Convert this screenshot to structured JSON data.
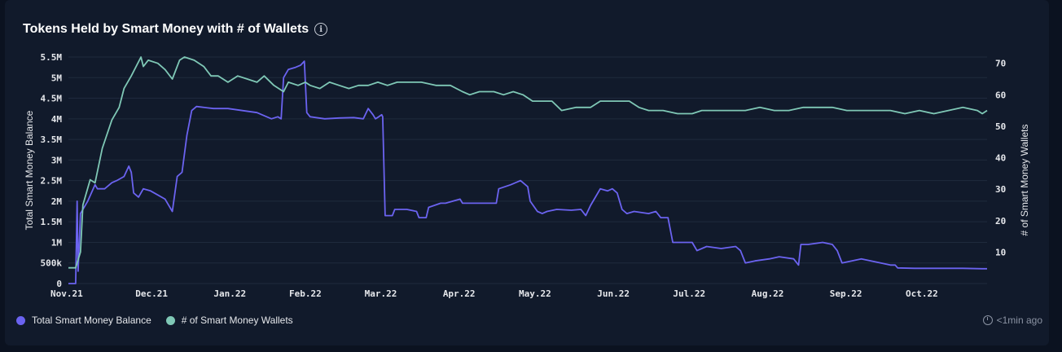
{
  "card": {
    "title": "Tokens Held by Smart Money with # of Wallets",
    "info_icon": "info-icon",
    "updated": "<1min ago",
    "updated_icon": "clock-refresh-icon"
  },
  "colors": {
    "balance": "#6b63f0",
    "wallets": "#7fc8b6",
    "grid": "#1f2a3d",
    "background": "#111a2b"
  },
  "chart_data": {
    "type": "line",
    "title": "Tokens Held by Smart Money with # of Wallets",
    "ylabel_left": "Total Smart Money Balance",
    "ylabel_right": "# of Smart Money Wallets",
    "ylim_left": [
      0,
      5500000
    ],
    "ylim_right": [
      0,
      72
    ],
    "x_ticks": [
      "Nov.21",
      "Dec.21",
      "Jan.22",
      "Feb.22",
      "Mar.22",
      "Apr.22",
      "May.22",
      "Jun.22",
      "Jul.22",
      "Aug.22",
      "Sep.22",
      "Oct.22"
    ],
    "y_left_ticks": [
      {
        "v": 0,
        "label": "0"
      },
      {
        "v": 500000,
        "label": "500k"
      },
      {
        "v": 1000000,
        "label": "1M"
      },
      {
        "v": 1500000,
        "label": "1.5M"
      },
      {
        "v": 2000000,
        "label": "2M"
      },
      {
        "v": 2500000,
        "label": "2.5M"
      },
      {
        "v": 3000000,
        "label": "3M"
      },
      {
        "v": 3500000,
        "label": "3.5M"
      },
      {
        "v": 4000000,
        "label": "4M"
      },
      {
        "v": 4500000,
        "label": "4.5M"
      },
      {
        "v": 5000000,
        "label": "5M"
      },
      {
        "v": 5500000,
        "label": "5.5M"
      }
    ],
    "y_right_ticks": [
      10,
      20,
      30,
      40,
      50,
      60,
      70
    ],
    "legend_position": "bottom-left",
    "series": [
      {
        "name": "Total Smart Money Balance",
        "axis": "left",
        "points": [
          [
            0.0,
            0
          ],
          [
            0.15,
            0
          ],
          [
            0.18,
            2000000
          ],
          [
            0.2,
            300000
          ],
          [
            0.25,
            1700000
          ],
          [
            0.4,
            2000000
          ],
          [
            0.55,
            2400000
          ],
          [
            0.6,
            2300000
          ],
          [
            0.75,
            2300000
          ],
          [
            0.9,
            2450000
          ],
          [
            1.0,
            2500000
          ],
          [
            1.15,
            2600000
          ],
          [
            1.25,
            2850000
          ],
          [
            1.3,
            2700000
          ],
          [
            1.35,
            2200000
          ],
          [
            1.45,
            2100000
          ],
          [
            1.55,
            2300000
          ],
          [
            1.7,
            2250000
          ],
          [
            1.85,
            2150000
          ],
          [
            2.0,
            2050000
          ],
          [
            2.15,
            1750000
          ],
          [
            2.25,
            2600000
          ],
          [
            2.35,
            2700000
          ],
          [
            2.45,
            3600000
          ],
          [
            2.55,
            4200000
          ],
          [
            2.65,
            4300000
          ],
          [
            3.0,
            4250000
          ],
          [
            3.3,
            4250000
          ],
          [
            3.6,
            4200000
          ],
          [
            3.9,
            4150000
          ],
          [
            4.2,
            4000000
          ],
          [
            4.33,
            4050000
          ],
          [
            4.4,
            4000000
          ],
          [
            4.45,
            5000000
          ],
          [
            4.55,
            5200000
          ],
          [
            4.7,
            5250000
          ],
          [
            4.8,
            5300000
          ],
          [
            4.88,
            5400000
          ],
          [
            4.93,
            4150000
          ],
          [
            5.0,
            4050000
          ],
          [
            5.3,
            4000000
          ],
          [
            5.6,
            4020000
          ],
          [
            5.9,
            4030000
          ],
          [
            6.1,
            4000000
          ],
          [
            6.2,
            4250000
          ],
          [
            6.3,
            4100000
          ],
          [
            6.35,
            4000000
          ],
          [
            6.42,
            4050000
          ],
          [
            6.48,
            4100000
          ],
          [
            6.5,
            4050000
          ],
          [
            6.55,
            1650000
          ],
          [
            6.7,
            1650000
          ],
          [
            6.75,
            1800000
          ],
          [
            7.0,
            1800000
          ],
          [
            7.2,
            1750000
          ],
          [
            7.25,
            1600000
          ],
          [
            7.4,
            1600000
          ],
          [
            7.45,
            1850000
          ],
          [
            7.7,
            1950000
          ],
          [
            7.8,
            1950000
          ],
          [
            7.95,
            2000000
          ],
          [
            8.1,
            2050000
          ],
          [
            8.15,
            1950000
          ],
          [
            8.5,
            1950000
          ],
          [
            8.85,
            1950000
          ],
          [
            8.9,
            2300000
          ],
          [
            9.15,
            2400000
          ],
          [
            9.35,
            2500000
          ],
          [
            9.5,
            2350000
          ],
          [
            9.55,
            2000000
          ],
          [
            9.7,
            1750000
          ],
          [
            9.8,
            1700000
          ],
          [
            9.9,
            1750000
          ],
          [
            10.1,
            1800000
          ],
          [
            10.4,
            1780000
          ],
          [
            10.6,
            1800000
          ],
          [
            10.7,
            1650000
          ],
          [
            10.8,
            1900000
          ],
          [
            11.0,
            2300000
          ],
          [
            11.15,
            2250000
          ],
          [
            11.25,
            2300000
          ],
          [
            11.35,
            2200000
          ],
          [
            11.45,
            1800000
          ],
          [
            11.55,
            1700000
          ],
          [
            11.7,
            1750000
          ],
          [
            12.0,
            1700000
          ],
          [
            12.15,
            1750000
          ],
          [
            12.25,
            1600000
          ],
          [
            12.4,
            1600000
          ],
          [
            12.5,
            1000000
          ],
          [
            12.9,
            1000000
          ],
          [
            13.0,
            800000
          ],
          [
            13.2,
            900000
          ],
          [
            13.5,
            850000
          ],
          [
            13.8,
            900000
          ],
          [
            13.9,
            800000
          ],
          [
            14.0,
            500000
          ],
          [
            14.2,
            550000
          ],
          [
            14.5,
            600000
          ],
          [
            14.7,
            650000
          ],
          [
            15.0,
            600000
          ],
          [
            15.1,
            450000
          ],
          [
            15.15,
            950000
          ],
          [
            15.3,
            950000
          ],
          [
            15.6,
            1000000
          ],
          [
            15.8,
            950000
          ],
          [
            15.9,
            800000
          ],
          [
            16.0,
            500000
          ],
          [
            16.2,
            550000
          ],
          [
            16.4,
            600000
          ],
          [
            16.6,
            550000
          ],
          [
            16.8,
            500000
          ],
          [
            17.0,
            450000
          ],
          [
            17.1,
            450000
          ],
          [
            17.15,
            380000
          ],
          [
            17.5,
            370000
          ],
          [
            18.0,
            370000
          ],
          [
            18.5,
            370000
          ],
          [
            18.9,
            360000
          ],
          [
            19.0,
            360000
          ]
        ]
      },
      {
        "name": "# of Smart Money Wallets",
        "axis": "right",
        "points": [
          [
            0.0,
            5
          ],
          [
            0.15,
            5
          ],
          [
            0.25,
            10
          ],
          [
            0.3,
            25
          ],
          [
            0.45,
            33
          ],
          [
            0.55,
            32
          ],
          [
            0.7,
            43
          ],
          [
            0.9,
            52
          ],
          [
            1.05,
            56
          ],
          [
            1.15,
            62
          ],
          [
            1.3,
            66
          ],
          [
            1.5,
            72
          ],
          [
            1.55,
            69
          ],
          [
            1.65,
            71
          ],
          [
            1.85,
            70
          ],
          [
            2.0,
            68
          ],
          [
            2.15,
            65
          ],
          [
            2.3,
            71
          ],
          [
            2.4,
            72
          ],
          [
            2.6,
            71
          ],
          [
            2.8,
            69
          ],
          [
            2.95,
            66
          ],
          [
            3.1,
            66
          ],
          [
            3.3,
            64
          ],
          [
            3.5,
            66
          ],
          [
            3.7,
            65
          ],
          [
            3.9,
            64
          ],
          [
            4.05,
            66
          ],
          [
            4.25,
            63
          ],
          [
            4.45,
            61
          ],
          [
            4.55,
            64
          ],
          [
            4.75,
            63
          ],
          [
            4.9,
            64
          ],
          [
            5.0,
            63
          ],
          [
            5.2,
            62
          ],
          [
            5.4,
            64
          ],
          [
            5.6,
            63
          ],
          [
            5.8,
            62
          ],
          [
            6.0,
            63
          ],
          [
            6.2,
            63
          ],
          [
            6.4,
            64
          ],
          [
            6.6,
            63
          ],
          [
            6.8,
            64
          ],
          [
            7.0,
            64
          ],
          [
            7.3,
            64
          ],
          [
            7.6,
            63
          ],
          [
            7.9,
            63
          ],
          [
            8.15,
            61
          ],
          [
            8.3,
            60
          ],
          [
            8.5,
            61
          ],
          [
            8.8,
            61
          ],
          [
            9.0,
            60
          ],
          [
            9.2,
            61
          ],
          [
            9.4,
            60
          ],
          [
            9.6,
            58
          ],
          [
            9.8,
            58
          ],
          [
            10.0,
            58
          ],
          [
            10.2,
            55
          ],
          [
            10.5,
            56
          ],
          [
            10.8,
            56
          ],
          [
            11.0,
            58
          ],
          [
            11.3,
            58
          ],
          [
            11.6,
            58
          ],
          [
            11.8,
            56
          ],
          [
            12.0,
            55
          ],
          [
            12.3,
            55
          ],
          [
            12.6,
            54
          ],
          [
            12.9,
            54
          ],
          [
            13.1,
            55
          ],
          [
            13.4,
            55
          ],
          [
            13.7,
            55
          ],
          [
            14.0,
            55
          ],
          [
            14.3,
            56
          ],
          [
            14.6,
            55
          ],
          [
            14.9,
            55
          ],
          [
            15.2,
            56
          ],
          [
            15.5,
            56
          ],
          [
            15.8,
            56
          ],
          [
            16.1,
            55
          ],
          [
            16.4,
            55
          ],
          [
            16.7,
            55
          ],
          [
            17.0,
            55
          ],
          [
            17.3,
            54
          ],
          [
            17.6,
            55
          ],
          [
            17.9,
            54
          ],
          [
            18.2,
            55
          ],
          [
            18.5,
            56
          ],
          [
            18.8,
            55
          ],
          [
            18.9,
            54
          ],
          [
            19.0,
            55
          ]
        ]
      }
    ]
  },
  "legend": [
    {
      "label": "Total Smart Money Balance",
      "color": "#6b63f0"
    },
    {
      "label": "# of Smart Money Wallets",
      "color": "#7fc8b6"
    }
  ]
}
